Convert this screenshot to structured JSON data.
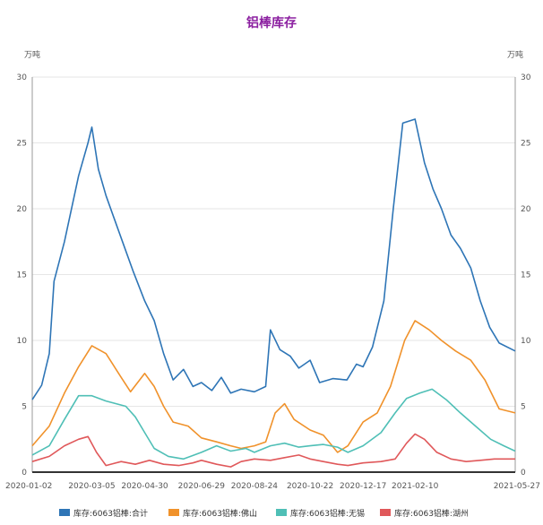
{
  "chart_data": {
    "type": "line",
    "title": "铝棒库存",
    "title_color": "#8b1fa0",
    "y_unit_left": "万吨",
    "y_unit_right": "万吨",
    "ylim": [
      0,
      30
    ],
    "yticks": [
      0,
      5,
      10,
      15,
      20,
      25,
      30
    ],
    "xlim": [
      "2020-01-02",
      "2021-05-27"
    ],
    "xticks": [
      "2020-01-02",
      "2020-03-05",
      "2020-04-30",
      "2020-06-29",
      "2020-08-24",
      "2020-10-22",
      "2020-12-17",
      "2021-02-10",
      "2021-05-27"
    ],
    "grid": true,
    "legend_position": "bottom",
    "series": [
      {
        "name": "库存:6063铝棒:合计",
        "color": "#2e75b6",
        "points": [
          [
            "2020-01-02",
            5.5
          ],
          [
            "2020-01-12",
            6.6
          ],
          [
            "2020-01-20",
            9.0
          ],
          [
            "2020-01-25",
            14.5
          ],
          [
            "2020-02-05",
            17.5
          ],
          [
            "2020-02-20",
            22.5
          ],
          [
            "2020-03-01",
            25.0
          ],
          [
            "2020-03-05",
            26.2
          ],
          [
            "2020-03-12",
            23.0
          ],
          [
            "2020-03-20",
            21.0
          ],
          [
            "2020-03-30",
            19.0
          ],
          [
            "2020-04-08",
            17.2
          ],
          [
            "2020-04-18",
            15.2
          ],
          [
            "2020-04-30",
            13.0
          ],
          [
            "2020-05-10",
            11.5
          ],
          [
            "2020-05-20",
            9.0
          ],
          [
            "2020-05-30",
            7.0
          ],
          [
            "2020-06-10",
            7.8
          ],
          [
            "2020-06-20",
            6.5
          ],
          [
            "2020-06-29",
            6.8
          ],
          [
            "2020-07-10",
            6.2
          ],
          [
            "2020-07-20",
            7.2
          ],
          [
            "2020-07-30",
            6.0
          ],
          [
            "2020-08-10",
            6.3
          ],
          [
            "2020-08-24",
            6.1
          ],
          [
            "2020-09-05",
            6.5
          ],
          [
            "2020-09-10",
            10.8
          ],
          [
            "2020-09-20",
            9.3
          ],
          [
            "2020-10-01",
            8.8
          ],
          [
            "2020-10-10",
            7.9
          ],
          [
            "2020-10-22",
            8.5
          ],
          [
            "2020-11-01",
            6.8
          ],
          [
            "2020-11-15",
            7.1
          ],
          [
            "2020-11-30",
            7.0
          ],
          [
            "2020-12-10",
            8.2
          ],
          [
            "2020-12-17",
            8.0
          ],
          [
            "2020-12-27",
            9.5
          ],
          [
            "2021-01-08",
            13.0
          ],
          [
            "2021-01-18",
            20.0
          ],
          [
            "2021-01-28",
            26.5
          ],
          [
            "2021-02-10",
            26.8
          ],
          [
            "2021-02-20",
            23.5
          ],
          [
            "2021-03-01",
            21.5
          ],
          [
            "2021-03-10",
            20.0
          ],
          [
            "2021-03-20",
            18.0
          ],
          [
            "2021-03-30",
            17.0
          ],
          [
            "2021-04-10",
            15.5
          ],
          [
            "2021-04-20",
            13.0
          ],
          [
            "2021-04-30",
            11.0
          ],
          [
            "2021-05-10",
            9.8
          ],
          [
            "2021-05-27",
            9.2
          ]
        ]
      },
      {
        "name": "库存:6063铝棒:佛山",
        "color": "#f0922b",
        "points": [
          [
            "2020-01-02",
            2.0
          ],
          [
            "2020-01-20",
            3.5
          ],
          [
            "2020-02-05",
            6.0
          ],
          [
            "2020-02-20",
            8.0
          ],
          [
            "2020-03-05",
            9.6
          ],
          [
            "2020-03-20",
            9.0
          ],
          [
            "2020-04-05",
            7.2
          ],
          [
            "2020-04-15",
            6.1
          ],
          [
            "2020-04-30",
            7.5
          ],
          [
            "2020-05-10",
            6.5
          ],
          [
            "2020-05-20",
            5.0
          ],
          [
            "2020-05-30",
            3.8
          ],
          [
            "2020-06-15",
            3.5
          ],
          [
            "2020-06-29",
            2.6
          ],
          [
            "2020-07-15",
            2.3
          ],
          [
            "2020-07-30",
            2.0
          ],
          [
            "2020-08-10",
            1.8
          ],
          [
            "2020-08-24",
            2.0
          ],
          [
            "2020-09-05",
            2.3
          ],
          [
            "2020-09-15",
            4.5
          ],
          [
            "2020-09-25",
            5.2
          ],
          [
            "2020-10-05",
            4.0
          ],
          [
            "2020-10-22",
            3.2
          ],
          [
            "2020-11-05",
            2.8
          ],
          [
            "2020-11-20",
            1.5
          ],
          [
            "2020-12-01",
            2.0
          ],
          [
            "2020-12-17",
            3.8
          ],
          [
            "2021-01-01",
            4.5
          ],
          [
            "2021-01-15",
            6.5
          ],
          [
            "2021-01-30",
            10.0
          ],
          [
            "2021-02-10",
            11.5
          ],
          [
            "2021-02-25",
            10.8
          ],
          [
            "2021-03-10",
            10.0
          ],
          [
            "2021-03-25",
            9.2
          ],
          [
            "2021-04-10",
            8.5
          ],
          [
            "2021-04-25",
            7.0
          ],
          [
            "2021-05-10",
            4.8
          ],
          [
            "2021-05-27",
            4.5
          ]
        ]
      },
      {
        "name": "库存:6063铝棒:无锡",
        "color": "#4fbfb6",
        "points": [
          [
            "2020-01-02",
            1.3
          ],
          [
            "2020-01-20",
            2.0
          ],
          [
            "2020-02-05",
            4.0
          ],
          [
            "2020-02-20",
            5.8
          ],
          [
            "2020-03-05",
            5.8
          ],
          [
            "2020-03-20",
            5.4
          ],
          [
            "2020-04-10",
            5.0
          ],
          [
            "2020-04-20",
            4.2
          ],
          [
            "2020-04-30",
            3.0
          ],
          [
            "2020-05-10",
            1.8
          ],
          [
            "2020-05-25",
            1.2
          ],
          [
            "2020-06-10",
            1.0
          ],
          [
            "2020-06-29",
            1.5
          ],
          [
            "2020-07-15",
            2.0
          ],
          [
            "2020-07-30",
            1.6
          ],
          [
            "2020-08-15",
            1.8
          ],
          [
            "2020-08-24",
            1.5
          ],
          [
            "2020-09-10",
            2.0
          ],
          [
            "2020-09-25",
            2.2
          ],
          [
            "2020-10-10",
            1.9
          ],
          [
            "2020-10-22",
            2.0
          ],
          [
            "2020-11-05",
            2.1
          ],
          [
            "2020-11-20",
            1.9
          ],
          [
            "2020-12-01",
            1.5
          ],
          [
            "2020-12-17",
            2.0
          ],
          [
            "2021-01-05",
            3.0
          ],
          [
            "2021-01-20",
            4.5
          ],
          [
            "2021-02-01",
            5.6
          ],
          [
            "2021-02-15",
            6.0
          ],
          [
            "2021-02-28",
            6.3
          ],
          [
            "2021-03-15",
            5.5
          ],
          [
            "2021-03-30",
            4.5
          ],
          [
            "2021-04-15",
            3.5
          ],
          [
            "2021-05-01",
            2.5
          ],
          [
            "2021-05-15",
            2.0
          ],
          [
            "2021-05-27",
            1.6
          ]
        ]
      },
      {
        "name": "库存:6063铝棒:湖州",
        "color": "#e0585a",
        "points": [
          [
            "2020-01-02",
            0.8
          ],
          [
            "2020-01-20",
            1.2
          ],
          [
            "2020-02-05",
            2.0
          ],
          [
            "2020-02-20",
            2.5
          ],
          [
            "2020-03-01",
            2.7
          ],
          [
            "2020-03-10",
            1.5
          ],
          [
            "2020-03-20",
            0.5
          ],
          [
            "2020-04-05",
            0.8
          ],
          [
            "2020-04-20",
            0.6
          ],
          [
            "2020-05-05",
            0.9
          ],
          [
            "2020-05-20",
            0.6
          ],
          [
            "2020-06-05",
            0.5
          ],
          [
            "2020-06-20",
            0.7
          ],
          [
            "2020-06-29",
            0.9
          ],
          [
            "2020-07-15",
            0.6
          ],
          [
            "2020-07-30",
            0.4
          ],
          [
            "2020-08-10",
            0.8
          ],
          [
            "2020-08-24",
            1.0
          ],
          [
            "2020-09-10",
            0.9
          ],
          [
            "2020-09-25",
            1.1
          ],
          [
            "2020-10-10",
            1.3
          ],
          [
            "2020-10-22",
            1.0
          ],
          [
            "2020-11-05",
            0.8
          ],
          [
            "2020-11-20",
            0.6
          ],
          [
            "2020-12-01",
            0.5
          ],
          [
            "2020-12-17",
            0.7
          ],
          [
            "2021-01-05",
            0.8
          ],
          [
            "2021-01-20",
            1.0
          ],
          [
            "2021-02-01",
            2.2
          ],
          [
            "2021-02-10",
            2.9
          ],
          [
            "2021-02-20",
            2.5
          ],
          [
            "2021-03-05",
            1.5
          ],
          [
            "2021-03-20",
            1.0
          ],
          [
            "2021-04-05",
            0.8
          ],
          [
            "2021-04-20",
            0.9
          ],
          [
            "2021-05-05",
            1.0
          ],
          [
            "2021-05-27",
            1.0
          ]
        ]
      }
    ]
  }
}
